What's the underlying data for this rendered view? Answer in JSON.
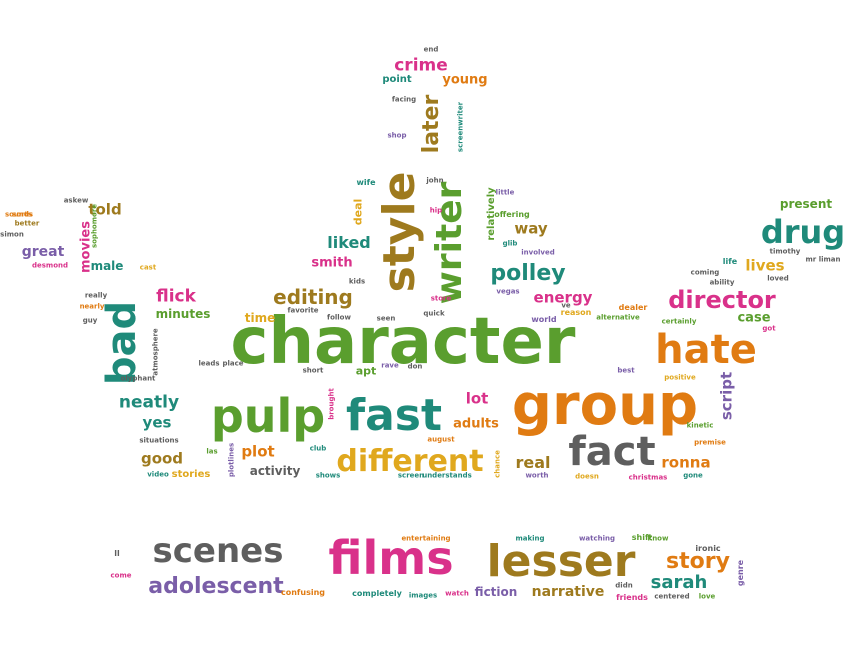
{
  "palette": {
    "green": "#5a9e2e",
    "orange": "#e07b12",
    "teal": "#1f8a7a",
    "pink": "#d9318a",
    "gray": "#5e5e5e",
    "brown": "#9e7a1e",
    "purple": "#7a5ea8",
    "gold": "#e0a81e",
    "blue": "#3f6fb0",
    "red": "#c6402b",
    "lightgreen": "#84b33b"
  },
  "words": [
    {
      "text": "character",
      "color": "green"
    },
    {
      "text": "group",
      "color": "orange"
    },
    {
      "text": "pulp",
      "color": "green"
    },
    {
      "text": "fast",
      "color": "teal"
    },
    {
      "text": "hate",
      "color": "orange"
    },
    {
      "text": "style",
      "color": "brown"
    },
    {
      "text": "writer",
      "color": "green"
    },
    {
      "text": "fact",
      "color": "gray"
    },
    {
      "text": "bad",
      "color": "teal"
    },
    {
      "text": "different",
      "color": "gold"
    },
    {
      "text": "director",
      "color": "pink"
    },
    {
      "text": "drug",
      "color": "teal"
    },
    {
      "text": "editing",
      "color": "brown"
    },
    {
      "text": "polley",
      "color": "teal"
    },
    {
      "text": "liked",
      "color": "teal"
    },
    {
      "text": "flick",
      "color": "pink"
    },
    {
      "text": "later",
      "color": "brown"
    },
    {
      "text": "crime",
      "color": "pink"
    },
    {
      "text": "films",
      "color": "pink"
    },
    {
      "text": "lesser",
      "color": "brown"
    },
    {
      "text": "scenes",
      "color": "gray"
    },
    {
      "text": "story",
      "color": "orange"
    },
    {
      "text": "adolescent",
      "color": "purple"
    },
    {
      "text": "sarah",
      "color": "teal"
    },
    {
      "text": "narrative",
      "color": "brown"
    },
    {
      "text": "fiction",
      "color": "purple"
    },
    {
      "text": "energy",
      "color": "pink"
    },
    {
      "text": "way",
      "color": "brown"
    },
    {
      "text": "lives",
      "color": "gold"
    },
    {
      "text": "case",
      "color": "green"
    },
    {
      "text": "neatly",
      "color": "teal"
    },
    {
      "text": "yes",
      "color": "teal"
    },
    {
      "text": "plot",
      "color": "orange"
    },
    {
      "text": "good",
      "color": "brown"
    },
    {
      "text": "real",
      "color": "brown"
    },
    {
      "text": "ronna",
      "color": "orange"
    },
    {
      "text": "lot",
      "color": "pink"
    },
    {
      "text": "adults",
      "color": "orange"
    },
    {
      "text": "smith",
      "color": "pink"
    },
    {
      "text": "movies",
      "color": "pink"
    },
    {
      "text": "told",
      "color": "brown"
    },
    {
      "text": "great",
      "color": "purple"
    },
    {
      "text": "male",
      "color": "teal"
    },
    {
      "text": "minutes",
      "color": "green"
    },
    {
      "text": "time",
      "color": "gold"
    },
    {
      "text": "present",
      "color": "green"
    },
    {
      "text": "script",
      "color": "purple"
    },
    {
      "text": "relatively",
      "color": "green"
    },
    {
      "text": "young",
      "color": "orange"
    },
    {
      "text": "point",
      "color": "teal"
    },
    {
      "text": "deal",
      "color": "gold"
    },
    {
      "text": "apt",
      "color": "green"
    },
    {
      "text": "activity",
      "color": "gray"
    },
    {
      "text": "stories",
      "color": "gold"
    },
    {
      "text": "end",
      "color": "gray"
    },
    {
      "text": "facing",
      "color": "gray"
    },
    {
      "text": "shop",
      "color": "purple"
    },
    {
      "text": "screenwriter",
      "color": "teal"
    },
    {
      "text": "john",
      "color": "gray"
    },
    {
      "text": "little",
      "color": "purple"
    },
    {
      "text": "wife",
      "color": "teal"
    },
    {
      "text": "hip",
      "color": "pink"
    },
    {
      "text": "offering",
      "color": "green"
    },
    {
      "text": "glib",
      "color": "teal"
    },
    {
      "text": "involved",
      "color": "purple"
    },
    {
      "text": "kids",
      "color": "gray"
    },
    {
      "text": "sounds",
      "color": "orange"
    },
    {
      "text": "store",
      "color": "pink"
    },
    {
      "text": "vegas",
      "color": "purple"
    },
    {
      "text": "favorite",
      "color": "gray"
    },
    {
      "text": "follow",
      "color": "gray"
    },
    {
      "text": "seen",
      "color": "gray"
    },
    {
      "text": "quick",
      "color": "gray"
    },
    {
      "text": "reason",
      "color": "gold"
    },
    {
      "text": "ve",
      "color": "gray"
    },
    {
      "text": "world",
      "color": "purple"
    },
    {
      "text": "alternative",
      "color": "green"
    },
    {
      "text": "dealer",
      "color": "orange"
    },
    {
      "text": "certainly",
      "color": "green"
    },
    {
      "text": "got",
      "color": "pink"
    },
    {
      "text": "life",
      "color": "teal"
    },
    {
      "text": "timothy",
      "color": "gray"
    },
    {
      "text": "coming",
      "color": "gray"
    },
    {
      "text": "ability",
      "color": "gray"
    },
    {
      "text": "loved",
      "color": "gray"
    },
    {
      "text": "mr liman",
      "color": "gray"
    },
    {
      "text": "sorts",
      "color": "orange"
    },
    {
      "text": "better",
      "color": "brown"
    },
    {
      "text": "askew",
      "color": "gray"
    },
    {
      "text": "sophomore",
      "color": "green"
    },
    {
      "text": "simon",
      "color": "gray"
    },
    {
      "text": "desmond",
      "color": "pink"
    },
    {
      "text": "cast",
      "color": "gold"
    },
    {
      "text": "really",
      "color": "gray"
    },
    {
      "text": "nearly",
      "color": "orange"
    },
    {
      "text": "guy",
      "color": "gray"
    },
    {
      "text": "atmosphere",
      "color": "gray"
    },
    {
      "text": "olyphant",
      "color": "gray"
    },
    {
      "text": "leads",
      "color": "gray"
    },
    {
      "text": "place",
      "color": "gray"
    },
    {
      "text": "short",
      "color": "gray"
    },
    {
      "text": "brought",
      "color": "pink"
    },
    {
      "text": "rave",
      "color": "purple"
    },
    {
      "text": "don",
      "color": "gray"
    },
    {
      "text": "best",
      "color": "purple"
    },
    {
      "text": "positive",
      "color": "gold"
    },
    {
      "text": "kinetic",
      "color": "green"
    },
    {
      "text": "premise",
      "color": "orange"
    },
    {
      "text": "situations",
      "color": "gray"
    },
    {
      "text": "las",
      "color": "green"
    },
    {
      "text": "club",
      "color": "teal"
    },
    {
      "text": "august",
      "color": "orange"
    },
    {
      "text": "video",
      "color": "teal"
    },
    {
      "text": "plotlines",
      "color": "purple"
    },
    {
      "text": "shows",
      "color": "teal"
    },
    {
      "text": "screen",
      "color": "teal"
    },
    {
      "text": "understands",
      "color": "teal"
    },
    {
      "text": "chance",
      "color": "gold"
    },
    {
      "text": "worth",
      "color": "purple"
    },
    {
      "text": "doesn",
      "color": "gold"
    },
    {
      "text": "christmas",
      "color": "pink"
    },
    {
      "text": "gone",
      "color": "teal"
    },
    {
      "text": "ll",
      "color": "gray"
    },
    {
      "text": "come",
      "color": "pink"
    },
    {
      "text": "confusing",
      "color": "orange"
    },
    {
      "text": "completely",
      "color": "teal"
    },
    {
      "text": "images",
      "color": "teal"
    },
    {
      "text": "watch",
      "color": "pink"
    },
    {
      "text": "entertaining",
      "color": "orange"
    },
    {
      "text": "making",
      "color": "teal"
    },
    {
      "text": "watching",
      "color": "purple"
    },
    {
      "text": "shift",
      "color": "green"
    },
    {
      "text": "know",
      "color": "green"
    },
    {
      "text": "ironic",
      "color": "gray"
    },
    {
      "text": "genre",
      "color": "purple"
    },
    {
      "text": "didn",
      "color": "gray"
    },
    {
      "text": "friends",
      "color": "pink"
    },
    {
      "text": "centered",
      "color": "gray"
    },
    {
      "text": "love",
      "color": "green"
    }
  ]
}
